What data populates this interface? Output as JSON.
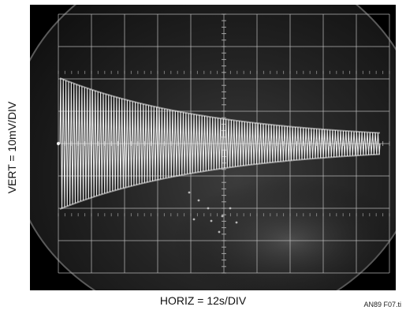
{
  "figure": {
    "vertical_scale_label": "VERT = 10mV/DIV",
    "horizontal_scale_label": "HORIZ = 12s/DIV",
    "figure_id": "AN89 F07.ti"
  },
  "scope": {
    "graticule_divisions": {
      "horizontal": 10,
      "vertical": 8
    },
    "colors": {
      "screen_background": "#000000",
      "crt_face": "#2a2a2a",
      "graticule": "#bdbdbd",
      "trace": "#f4f4f4"
    }
  }
}
